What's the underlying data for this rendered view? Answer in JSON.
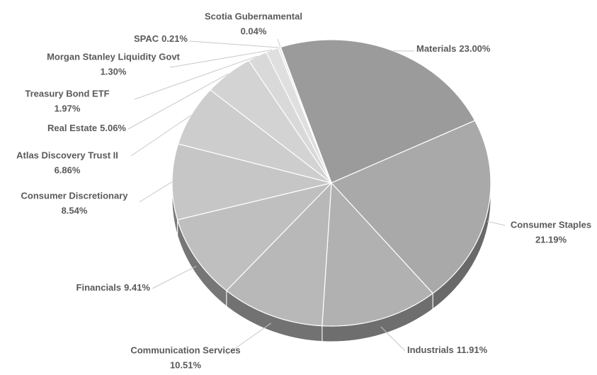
{
  "chart_data": {
    "type": "pie",
    "categories": [
      "Materials",
      "Consumer Staples",
      "Industrials",
      "Communication Services",
      "Financials",
      "Consumer Discretionary",
      "Atlas Discovery Trust II",
      "Real Estate",
      "Treasury Bond ETF",
      "Morgan Stanley Liquidity Govt",
      "SPAC",
      "Scotia Gubernamental"
    ],
    "values": [
      23.0,
      21.19,
      11.91,
      10.51,
      9.41,
      8.54,
      6.86,
      5.06,
      1.97,
      1.3,
      0.21,
      0.04
    ],
    "value_labels": [
      "23.00%",
      "21.19%",
      "11.91%",
      "10.51%",
      "9.41%",
      "8.54%",
      "6.86%",
      "5.06%",
      "1.97%",
      "1.30%",
      "0.21%",
      "0.04%"
    ],
    "colors": [
      "#9b9b9b",
      "#a9a9a9",
      "#b1b1b1",
      "#b8b8b8",
      "#bfbfbf",
      "#c6c6c6",
      "#cdcdcd",
      "#d3d3d3",
      "#d9d9d9",
      "#dfdfdf",
      "#e5e5e5",
      "#ececec"
    ]
  }
}
